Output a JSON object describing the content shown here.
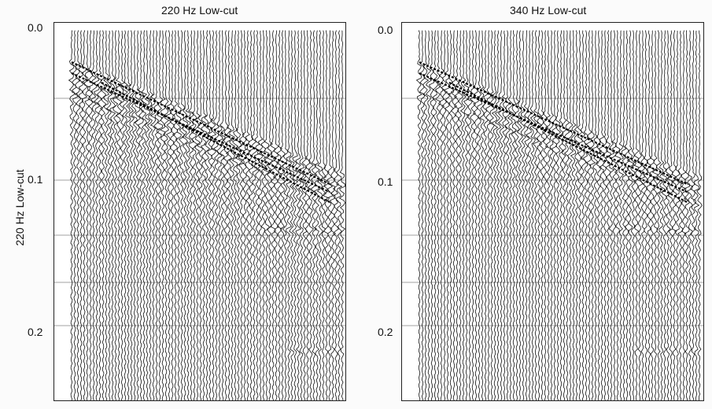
{
  "titles": [
    "220 Hz Low-cut",
    "340 Hz Low-cut"
  ],
  "ylabel": "220 Hz Low-cut",
  "yticks": [
    "0.0",
    "0.1",
    "0.2"
  ]
}
